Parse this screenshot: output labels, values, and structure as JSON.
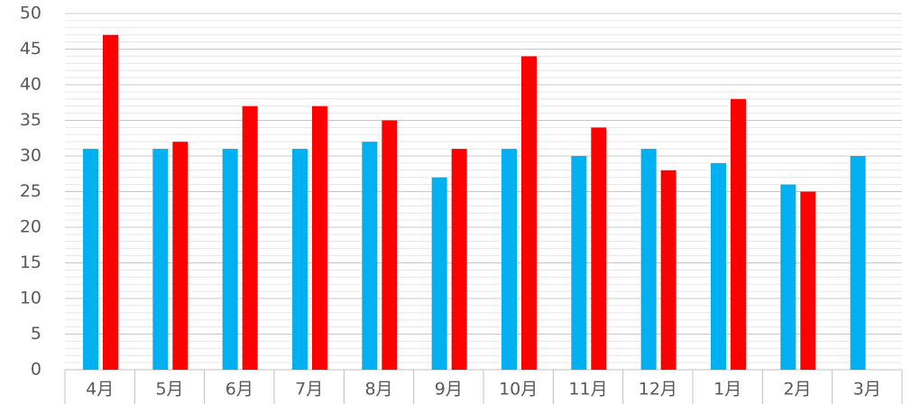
{
  "chart_data": {
    "type": "bar",
    "categories": [
      "4月",
      "5月",
      "6月",
      "7月",
      "8月",
      "9月",
      "10月",
      "11月",
      "12月",
      "1月",
      "2月",
      "3月"
    ],
    "series": [
      {
        "color": "#00b0f0",
        "values": [
          31,
          31,
          31,
          31,
          32,
          27,
          31,
          30,
          31,
          29,
          26,
          30
        ]
      },
      {
        "color": "#ff0000",
        "values": [
          47,
          32,
          37,
          37,
          35,
          31,
          44,
          34,
          28,
          38,
          25,
          null
        ]
      }
    ],
    "ylim": [
      0,
      50
    ],
    "yticks": [
      0,
      5,
      10,
      15,
      20,
      25,
      30,
      35,
      40,
      45,
      50
    ],
    "minor_yticks": [
      1,
      2,
      3,
      4,
      6,
      7,
      8,
      9,
      11,
      12,
      13,
      14,
      16,
      17,
      18,
      19,
      21,
      22,
      23,
      24,
      26,
      27,
      28,
      29,
      31,
      32,
      33,
      34,
      36,
      37,
      38,
      39,
      41,
      42,
      43,
      44,
      46,
      47,
      48,
      49
    ],
    "grid": true
  }
}
